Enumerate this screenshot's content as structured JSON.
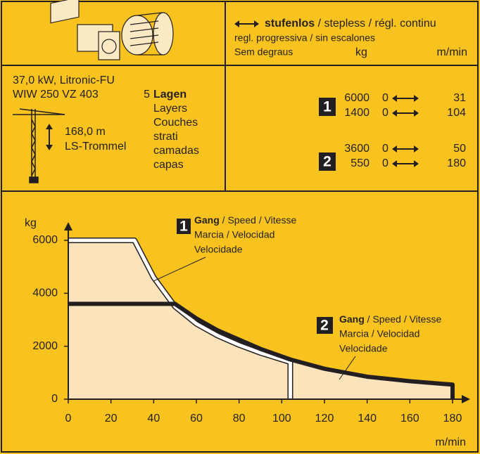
{
  "header": {
    "title_bold": "stufenlos",
    "title_rest": " / stepless / régl. continu",
    "line2": "regl. progressiva / sin escalones",
    "line3": "Sem degraus",
    "col_kg": "kg",
    "col_speed": "m/min"
  },
  "motor": {
    "power": "37,0 kW, Litronic-FU",
    "model": "WIW 250 VZ 403",
    "layers_count": "5",
    "layers": [
      "Lagen",
      "Layers",
      "Couches",
      "strati",
      "camadas",
      "capas"
    ],
    "rope_length": "168,0 m",
    "drum": "LS-Trommel"
  },
  "gears": [
    {
      "label": "1",
      "rows": [
        {
          "kg": 6000,
          "from": 0,
          "to": 31
        },
        {
          "kg": 1400,
          "from": 0,
          "to": 104
        }
      ]
    },
    {
      "label": "2",
      "rows": [
        {
          "kg": 3600,
          "from": 0,
          "to": 50
        },
        {
          "kg": 550,
          "from": 0,
          "to": 180
        }
      ]
    }
  ],
  "chart_data": {
    "type": "line",
    "y_label": "kg",
    "x_label": "m/min",
    "xlim": [
      0,
      180
    ],
    "ylim": [
      0,
      6000
    ],
    "xticks": [
      0,
      20,
      40,
      60,
      80,
      100,
      120,
      140,
      160,
      180
    ],
    "yticks": [
      0,
      2000,
      4000,
      6000
    ],
    "series": [
      {
        "name": "1",
        "color": "#ffffff",
        "x": [
          0,
          31,
          40,
          50,
          60,
          70,
          80,
          90,
          104,
          104
        ],
        "values": [
          6000,
          6000,
          4600,
          3500,
          2850,
          2400,
          2050,
          1750,
          1400,
          0
        ]
      },
      {
        "name": "2",
        "color": "#231f20",
        "x": [
          0,
          50,
          60,
          70,
          80,
          90,
          104,
          120,
          140,
          160,
          180,
          180
        ],
        "values": [
          3600,
          3600,
          3050,
          2600,
          2250,
          1900,
          1500,
          1150,
          850,
          680,
          550,
          0
        ]
      }
    ],
    "annotations": [
      {
        "bold": "Gang",
        "rest": " / Speed / Vitesse",
        "line2": "Marcia / Velocidad",
        "line3": "Velocidade"
      },
      {
        "bold": "Gang",
        "rest": " / Speed / Vitesse",
        "line2": "Marcia / Velocidad",
        "line3": "Velocidade"
      }
    ]
  }
}
